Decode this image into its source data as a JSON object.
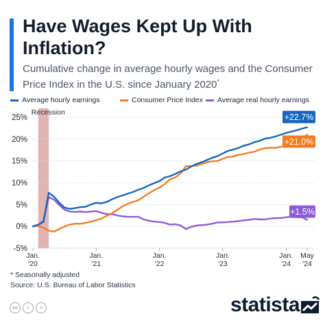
{
  "header": {
    "title": "Have Wages Kept Up With Inflation?",
    "subtitle": "Cumulative change in average hourly wages and the Consumer Price Index in the U.S. since January 2020",
    "subtitle_mark": "*"
  },
  "colors": {
    "accent": "#1a73e8",
    "wages": "#1565c0",
    "cpi": "#f47b20",
    "real": "#8d5ad6",
    "recession": "#d99a9a",
    "grid": "#cfd3da",
    "dark": "#0f1b2f"
  },
  "chart_data": {
    "type": "line",
    "ylim": [
      -5,
      25
    ],
    "yticks": [
      "25%",
      "20%",
      "15%",
      "10%",
      "5%",
      "0%",
      "-5%"
    ],
    "grid": true,
    "legend_position": "top",
    "recession_label": "Recession",
    "recession_span": [
      "2020-02",
      "2020-04"
    ],
    "x_ticks": [
      {
        "date": "2020-01",
        "line1": "Jan.",
        "line2": "'20"
      },
      {
        "date": "2021-01",
        "line1": "Jan.",
        "line2": "'21"
      },
      {
        "date": "2022-01",
        "line1": "Jan.",
        "line2": "'22"
      },
      {
        "date": "2023-01",
        "line1": "Jan.",
        "line2": "'23"
      },
      {
        "date": "2024-01",
        "line1": "Jan.",
        "line2": "'24"
      },
      {
        "date": "2024-05",
        "line1": "May",
        "line2": "'24"
      }
    ],
    "x": [
      "2020-01",
      "2020-02",
      "2020-03",
      "2020-04",
      "2020-05",
      "2020-06",
      "2020-07",
      "2020-08",
      "2020-09",
      "2020-10",
      "2020-11",
      "2020-12",
      "2021-01",
      "2021-02",
      "2021-03",
      "2021-04",
      "2021-05",
      "2021-06",
      "2021-07",
      "2021-08",
      "2021-09",
      "2021-10",
      "2021-11",
      "2021-12",
      "2022-01",
      "2022-02",
      "2022-03",
      "2022-04",
      "2022-05",
      "2022-06",
      "2022-07",
      "2022-08",
      "2022-09",
      "2022-10",
      "2022-11",
      "2022-12",
      "2023-01",
      "2023-02",
      "2023-03",
      "2023-04",
      "2023-05",
      "2023-06",
      "2023-07",
      "2023-08",
      "2023-09",
      "2023-10",
      "2023-11",
      "2023-12",
      "2024-01",
      "2024-02",
      "2024-03",
      "2024-04",
      "2024-05"
    ],
    "series": [
      {
        "name": "Average hourly earnings",
        "color": "#1565c0",
        "end_label": "+22.7%",
        "values": [
          0,
          0.4,
          1.0,
          7.7,
          6.8,
          5.4,
          4.3,
          4.0,
          4.2,
          4.4,
          4.5,
          5.0,
          5.4,
          5.3,
          5.6,
          6.2,
          6.7,
          7.1,
          7.5,
          7.9,
          8.4,
          8.8,
          9.4,
          9.9,
          10.4,
          11.2,
          11.5,
          12.0,
          12.6,
          13.0,
          13.7,
          14.3,
          14.7,
          15.2,
          15.7,
          16.1,
          16.7,
          17.3,
          17.6,
          18.0,
          18.5,
          18.8,
          19.3,
          19.6,
          20.1,
          20.3,
          20.6,
          21.0,
          21.4,
          21.7,
          22.0,
          22.4,
          22.7
        ]
      },
      {
        "name": "Consumer Price Index",
        "color": "#f47b20",
        "end_label": "+21.0%",
        "values": [
          0,
          0.1,
          -0.3,
          -1.0,
          -1.2,
          -0.6,
          0.0,
          0.4,
          0.6,
          0.6,
          0.8,
          1.1,
          1.4,
          1.8,
          2.4,
          3.0,
          3.8,
          4.6,
          5.2,
          5.6,
          6.0,
          6.8,
          7.6,
          8.3,
          8.9,
          9.7,
          10.8,
          11.2,
          12.1,
          13.8,
          13.8,
          13.9,
          14.3,
          14.7,
          14.9,
          15.0,
          15.5,
          15.9,
          16.0,
          16.4,
          16.6,
          16.9,
          17.1,
          17.6,
          17.9,
          18.0,
          18.0,
          18.2,
          18.6,
          19.2,
          19.8,
          20.2,
          21.0
        ]
      },
      {
        "name": "Average real hourly earnings",
        "color": "#8d5ad6",
        "end_label": "+1.5%",
        "values": [
          0,
          0.3,
          1.3,
          6.7,
          6.1,
          4.9,
          3.8,
          3.4,
          3.3,
          3.4,
          3.3,
          3.4,
          3.5,
          3.1,
          2.8,
          2.8,
          2.5,
          2.3,
          2.2,
          2.2,
          2.2,
          1.6,
          1.3,
          1.1,
          1.0,
          0.8,
          0.4,
          0.5,
          0.2,
          -0.6,
          -0.1,
          0.2,
          0.3,
          0.4,
          0.6,
          0.9,
          0.9,
          1.0,
          1.1,
          1.2,
          1.4,
          1.5,
          1.7,
          1.6,
          1.6,
          1.8,
          1.9,
          1.9,
          2.1,
          2.2,
          2.1,
          2.1,
          1.5
        ]
      }
    ]
  },
  "footnotes": {
    "line1": "* Seasonally adjusted",
    "line2": "Source: U.S. Bureau of Labor Statistics"
  },
  "footer": {
    "logo_text": "statista",
    "cc_icons": [
      "cc-icon",
      "attribution-icon",
      "no-derivatives-icon"
    ]
  }
}
